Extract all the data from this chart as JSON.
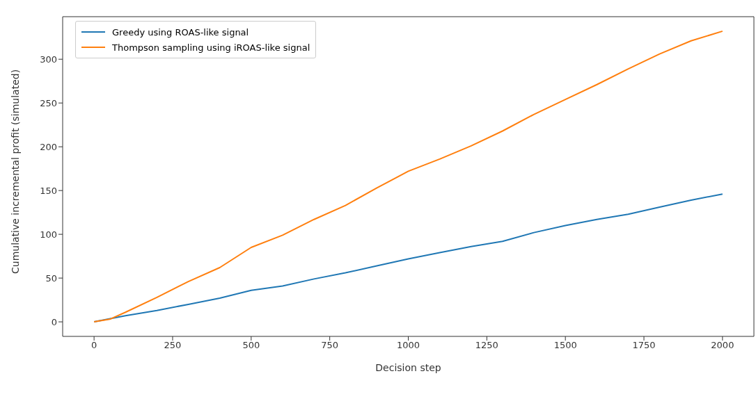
{
  "chart_data": {
    "type": "line",
    "xlabel": "Decision step",
    "ylabel": "Cumulative incremental profit (simulated)",
    "xlim": [
      -100,
      2100
    ],
    "xticks": [
      0,
      250,
      500,
      750,
      1000,
      1250,
      1500,
      1750,
      2000
    ],
    "ylim": [
      -16.6,
      348.6
    ],
    "yticks": [
      0,
      50,
      100,
      150,
      200,
      250,
      300
    ],
    "grid": false,
    "legend": "top left",
    "line_style": "solid",
    "series": [
      {
        "name": "Greedy using ROAS-like signal",
        "color": "#1f77b4",
        "x": [
          0,
          100,
          200,
          300,
          400,
          500,
          600,
          700,
          800,
          900,
          1000,
          1100,
          1200,
          1300,
          1400,
          1500,
          1600,
          1700,
          1800,
          1900,
          2000
        ],
        "values": [
          0,
          7,
          13,
          20,
          27,
          36,
          41,
          49,
          56,
          64,
          72,
          79,
          86,
          92,
          102,
          110,
          117,
          123,
          131,
          139,
          146
        ]
      },
      {
        "name": "Thompson sampling using iROAS-like signal",
        "color": "#ff7f0e",
        "x": [
          0,
          50,
          100,
          200,
          300,
          400,
          500,
          600,
          700,
          800,
          900,
          1000,
          1100,
          1200,
          1300,
          1400,
          1500,
          1600,
          1700,
          1800,
          1900,
          2000
        ],
        "values": [
          0,
          3,
          11,
          28,
          46,
          62,
          85,
          99,
          117,
          133,
          153,
          172,
          186,
          201,
          218,
          237,
          254,
          271,
          289,
          306,
          321,
          332
        ]
      }
    ]
  }
}
